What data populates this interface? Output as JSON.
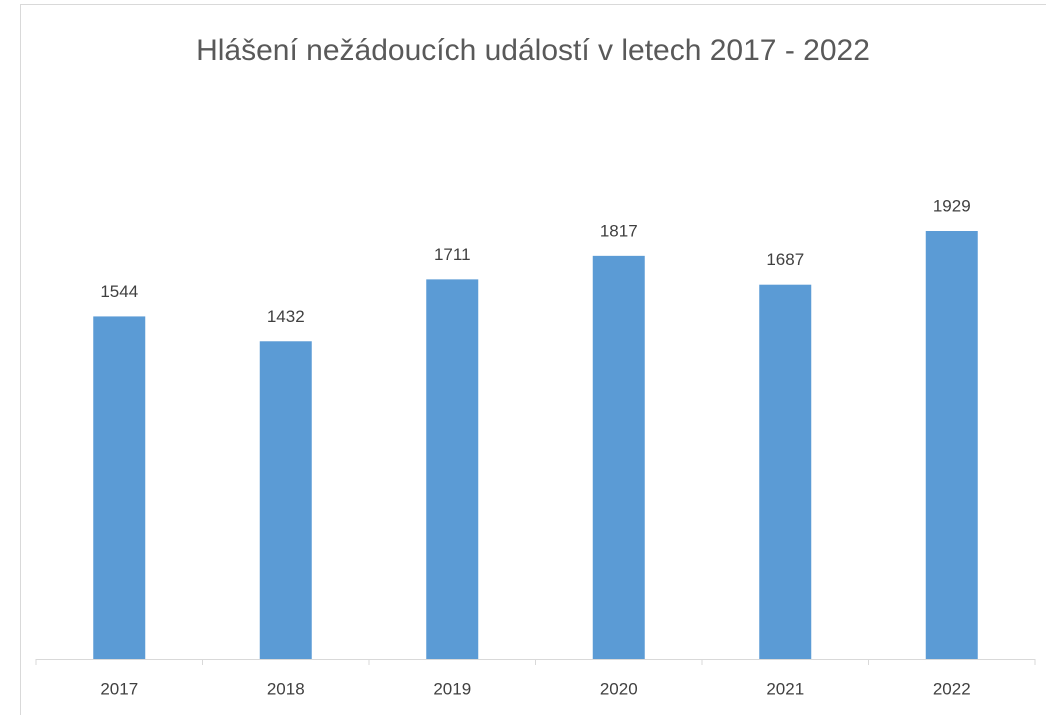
{
  "chart_data": {
    "type": "bar",
    "title": "Hlášení nežádoucích událostí v letech 2017 - 2022",
    "categories": [
      "2017",
      "2018",
      "2019",
      "2020",
      "2021",
      "2022"
    ],
    "values": [
      1544,
      1432,
      1711,
      1817,
      1687,
      1929
    ],
    "color": "#5b9bd5"
  }
}
